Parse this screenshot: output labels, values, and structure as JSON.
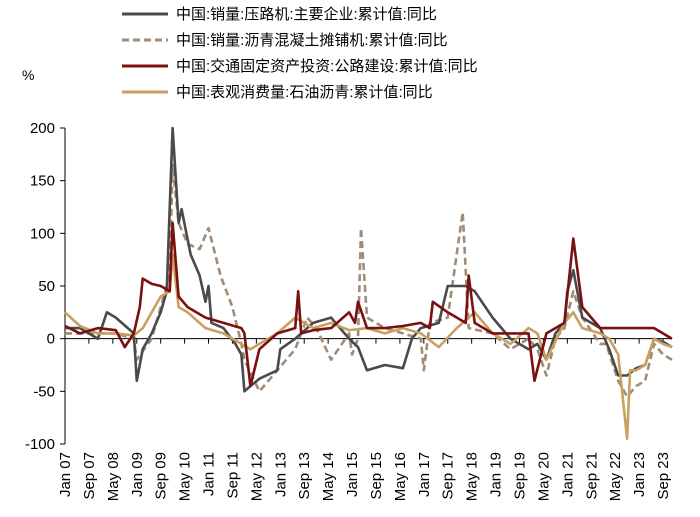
{
  "chart_data": {
    "type": "line",
    "unit_label": "%",
    "ylim": [
      -100,
      200
    ],
    "yticks": [
      200,
      150,
      100,
      50,
      0,
      -50,
      -100
    ],
    "x_tick_labels": [
      "Jan 07",
      "Sep 07",
      "May 08",
      "Jan 09",
      "Sep 09",
      "May 10",
      "Jan 11",
      "Sep 11",
      "May 12",
      "Jan 13",
      "Sep 13",
      "May 14",
      "Jan 15",
      "Sep 15",
      "May 16",
      "Jan 17",
      "Sep 17",
      "May 18",
      "Jan 19",
      "Sep 19",
      "May 20",
      "Jan 21",
      "Sep 21",
      "May 22",
      "Jan 23",
      "Sep 23"
    ],
    "x_start": "2007-01",
    "x_end": "2023-12",
    "grid": false,
    "legend_position": "top",
    "series": [
      {
        "name": "中国:销量:压路机:主要企业:累计值:同比",
        "color": "#4a4a4a",
        "dash": "solid",
        "points": [
          [
            "2007-01",
            10
          ],
          [
            "2007-06",
            10
          ],
          [
            "2007-12",
            0
          ],
          [
            "2008-03",
            25
          ],
          [
            "2008-06",
            20
          ],
          [
            "2008-10",
            10
          ],
          [
            "2008-12",
            5
          ],
          [
            "2009-01",
            -40
          ],
          [
            "2009-03",
            -10
          ],
          [
            "2009-06",
            5
          ],
          [
            "2009-09",
            25
          ],
          [
            "2009-11",
            45
          ],
          [
            "2010-01",
            200
          ],
          [
            "2010-03",
            110
          ],
          [
            "2010-04",
            123
          ],
          [
            "2010-07",
            80
          ],
          [
            "2010-10",
            60
          ],
          [
            "2010-12",
            35
          ],
          [
            "2011-01",
            50
          ],
          [
            "2011-02",
            15
          ],
          [
            "2011-06",
            10
          ],
          [
            "2011-10",
            -5
          ],
          [
            "2011-12",
            -15
          ],
          [
            "2012-01",
            -50
          ],
          [
            "2012-03",
            -45
          ],
          [
            "2012-06",
            -38
          ],
          [
            "2012-12",
            -30
          ],
          [
            "2013-01",
            -10
          ],
          [
            "2013-06",
            0
          ],
          [
            "2013-12",
            15
          ],
          [
            "2014-06",
            20
          ],
          [
            "2014-12",
            0
          ],
          [
            "2015-03",
            -8
          ],
          [
            "2015-06",
            -30
          ],
          [
            "2015-12",
            -25
          ],
          [
            "2016-06",
            -28
          ],
          [
            "2016-09",
            0
          ],
          [
            "2016-12",
            10
          ],
          [
            "2017-06",
            15
          ],
          [
            "2017-09",
            50
          ],
          [
            "2018-03",
            50
          ],
          [
            "2018-06",
            45
          ],
          [
            "2018-12",
            20
          ],
          [
            "2019-06",
            0
          ],
          [
            "2019-12",
            -10
          ],
          [
            "2020-03",
            -5
          ],
          [
            "2020-06",
            -20
          ],
          [
            "2020-09",
            5
          ],
          [
            "2020-12",
            15
          ],
          [
            "2021-01",
            45
          ],
          [
            "2021-03",
            65
          ],
          [
            "2021-06",
            20
          ],
          [
            "2021-12",
            10
          ],
          [
            "2022-03",
            -10
          ],
          [
            "2022-06",
            -35
          ],
          [
            "2022-09",
            -35
          ],
          [
            "2022-12",
            -28
          ],
          [
            "2023-03",
            -25
          ],
          [
            "2023-06",
            0
          ],
          [
            "2023-09",
            -3
          ],
          [
            "2023-12",
            -8
          ]
        ]
      },
      {
        "name": "中国:销量:沥青混凝土摊铺机:累计值:同比",
        "color": "#a08c78",
        "dash": "dashed",
        "points": [
          [
            "2007-01",
            5
          ],
          [
            "2007-06",
            5
          ],
          [
            "2007-12",
            5
          ],
          [
            "2008-06",
            5
          ],
          [
            "2008-12",
            0
          ],
          [
            "2009-01",
            -20
          ],
          [
            "2009-06",
            0
          ],
          [
            "2009-10",
            40
          ],
          [
            "2009-12",
            60
          ],
          [
            "2010-01",
            165
          ],
          [
            "2010-03",
            110
          ],
          [
            "2010-06",
            90
          ],
          [
            "2010-10",
            85
          ],
          [
            "2011-01",
            105
          ],
          [
            "2011-05",
            60
          ],
          [
            "2011-09",
            30
          ],
          [
            "2011-12",
            -5
          ],
          [
            "2012-01",
            -20
          ],
          [
            "2012-06",
            -50
          ],
          [
            "2012-12",
            -30
          ],
          [
            "2013-06",
            -10
          ],
          [
            "2013-10",
            20
          ],
          [
            "2014-01",
            10
          ],
          [
            "2014-06",
            -20
          ],
          [
            "2014-12",
            5
          ],
          [
            "2015-01",
            -15
          ],
          [
            "2015-03",
            0
          ],
          [
            "2015-04",
            105
          ],
          [
            "2015-06",
            20
          ],
          [
            "2015-12",
            10
          ],
          [
            "2016-06",
            5
          ],
          [
            "2016-12",
            0
          ],
          [
            "2017-01",
            -30
          ],
          [
            "2017-03",
            15
          ],
          [
            "2017-09",
            20
          ],
          [
            "2018-02",
            120
          ],
          [
            "2018-04",
            10
          ],
          [
            "2018-12",
            5
          ],
          [
            "2019-06",
            -10
          ],
          [
            "2019-12",
            0
          ],
          [
            "2020-03",
            -10
          ],
          [
            "2020-06",
            -35
          ],
          [
            "2020-09",
            0
          ],
          [
            "2020-12",
            10
          ],
          [
            "2021-03",
            45
          ],
          [
            "2021-06",
            20
          ],
          [
            "2021-12",
            -5
          ],
          [
            "2022-02",
            -5
          ],
          [
            "2022-06",
            -40
          ],
          [
            "2022-09",
            -55
          ],
          [
            "2022-12",
            -45
          ],
          [
            "2023-03",
            -40
          ],
          [
            "2023-06",
            -5
          ],
          [
            "2023-09",
            -15
          ],
          [
            "2023-12",
            -20
          ]
        ]
      },
      {
        "name": "中国:交通固定资产投资:公路建设:累计值:同比",
        "color": "#7a1010",
        "dash": "solid",
        "points": [
          [
            "2007-01",
            12
          ],
          [
            "2007-06",
            5
          ],
          [
            "2007-12",
            10
          ],
          [
            "2008-06",
            8
          ],
          [
            "2008-09",
            -8
          ],
          [
            "2008-12",
            5
          ],
          [
            "2009-02",
            30
          ],
          [
            "2009-03",
            57
          ],
          [
            "2009-06",
            52
          ],
          [
            "2009-09",
            50
          ],
          [
            "2009-12",
            45
          ],
          [
            "2010-01",
            110
          ],
          [
            "2010-03",
            40
          ],
          [
            "2010-06",
            30
          ],
          [
            "2010-12",
            20
          ],
          [
            "2011-06",
            15
          ],
          [
            "2011-12",
            10
          ],
          [
            "2012-01",
            5
          ],
          [
            "2012-03",
            -45
          ],
          [
            "2012-06",
            -10
          ],
          [
            "2012-12",
            5
          ],
          [
            "2013-06",
            10
          ],
          [
            "2013-07",
            45
          ],
          [
            "2013-08",
            5
          ],
          [
            "2013-12",
            8
          ],
          [
            "2014-06",
            10
          ],
          [
            "2014-12",
            25
          ],
          [
            "2015-02",
            15
          ],
          [
            "2015-03",
            35
          ],
          [
            "2015-06",
            10
          ],
          [
            "2015-12",
            10
          ],
          [
            "2016-06",
            12
          ],
          [
            "2016-12",
            15
          ],
          [
            "2017-03",
            10
          ],
          [
            "2017-04",
            35
          ],
          [
            "2017-09",
            25
          ],
          [
            "2018-03",
            15
          ],
          [
            "2018-04",
            60
          ],
          [
            "2018-06",
            15
          ],
          [
            "2018-12",
            5
          ],
          [
            "2019-06",
            5
          ],
          [
            "2019-12",
            5
          ],
          [
            "2020-02",
            -40
          ],
          [
            "2020-06",
            5
          ],
          [
            "2020-12",
            15
          ],
          [
            "2021-03",
            95
          ],
          [
            "2021-06",
            30
          ],
          [
            "2021-12",
            10
          ],
          [
            "2022-03",
            10
          ],
          [
            "2022-06",
            10
          ],
          [
            "2022-12",
            10
          ],
          [
            "2023-06",
            10
          ],
          [
            "2023-09",
            5
          ],
          [
            "2023-12",
            0
          ]
        ]
      },
      {
        "name": "中国:表观消费量:石油沥青:累计值:同比",
        "color": "#c9a060",
        "dash": "solid",
        "points": [
          [
            "2007-01",
            25
          ],
          [
            "2007-06",
            12
          ],
          [
            "2007-12",
            5
          ],
          [
            "2008-06",
            5
          ],
          [
            "2008-12",
            3
          ],
          [
            "2009-03",
            10
          ],
          [
            "2009-06",
            25
          ],
          [
            "2009-09",
            40
          ],
          [
            "2009-12",
            45
          ],
          [
            "2010-01",
            80
          ],
          [
            "2010-03",
            30
          ],
          [
            "2010-06",
            25
          ],
          [
            "2010-12",
            10
          ],
          [
            "2011-06",
            5
          ],
          [
            "2011-12",
            -5
          ],
          [
            "2012-03",
            -10
          ],
          [
            "2012-06",
            -5
          ],
          [
            "2012-12",
            5
          ],
          [
            "2013-06",
            20
          ],
          [
            "2013-12",
            10
          ],
          [
            "2014-06",
            15
          ],
          [
            "2014-12",
            8
          ],
          [
            "2015-06",
            10
          ],
          [
            "2015-12",
            5
          ],
          [
            "2016-06",
            10
          ],
          [
            "2016-12",
            5
          ],
          [
            "2017-06",
            -8
          ],
          [
            "2017-12",
            10
          ],
          [
            "2018-06",
            25
          ],
          [
            "2018-12",
            5
          ],
          [
            "2019-06",
            -5
          ],
          [
            "2019-12",
            10
          ],
          [
            "2020-03",
            5
          ],
          [
            "2020-06",
            -20
          ],
          [
            "2020-12",
            15
          ],
          [
            "2021-03",
            25
          ],
          [
            "2021-06",
            10
          ],
          [
            "2021-12",
            5
          ],
          [
            "2022-03",
            0
          ],
          [
            "2022-06",
            -15
          ],
          [
            "2022-09",
            -95
          ],
          [
            "2022-10",
            -30
          ],
          [
            "2022-12",
            -30
          ],
          [
            "2023-03",
            -25
          ],
          [
            "2023-06",
            0
          ],
          [
            "2023-09",
            -5
          ],
          [
            "2023-12",
            -8
          ]
        ]
      }
    ]
  }
}
